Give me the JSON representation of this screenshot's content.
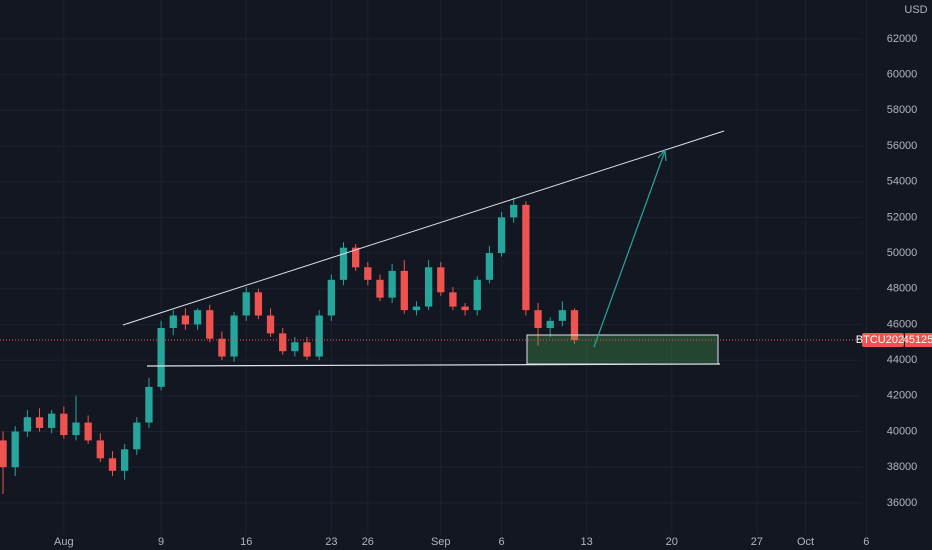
{
  "chart_data": {
    "type": "candlestick",
    "symbol": "BTCU2021",
    "currency": "USD",
    "last_price": 45125,
    "up_color": "#26a69a",
    "down_color": "#ef5350",
    "grid": true,
    "xlim": [
      -4.25,
      72.4
    ],
    "ylim": [
      34200,
      64180
    ],
    "xticks": [
      {
        "value": 1,
        "label": "Aug"
      },
      9,
      16,
      23,
      26,
      {
        "value": 32,
        "label": "Sep"
      },
      {
        "value": 37,
        "label": "6"
      },
      {
        "value": 44,
        "label": "13"
      },
      {
        "value": 51,
        "label": "20"
      },
      {
        "value": 58,
        "label": "27"
      },
      {
        "value": 62,
        "label": "Oct"
      },
      {
        "value": 67,
        "label": "6"
      }
    ],
    "yticks": [
      36000,
      38000,
      40000,
      42000,
      44000,
      46000,
      48000,
      50000,
      52000,
      54000,
      56000,
      58000,
      60000,
      62000
    ],
    "x": [
      -4,
      -3,
      -2,
      -1,
      0,
      1,
      2,
      3,
      4,
      5,
      6,
      7,
      8,
      9,
      10,
      11,
      12,
      13,
      14,
      15,
      16,
      17,
      18,
      19,
      20,
      21,
      22,
      23,
      24,
      25,
      26,
      27,
      28,
      29,
      30,
      31,
      32,
      33,
      34,
      35,
      36,
      37,
      38,
      39,
      40,
      41,
      42,
      43
    ],
    "open": [
      39500,
      38000,
      40000,
      40800,
      40200,
      41000,
      39800,
      40500,
      39500,
      38500,
      37800,
      39000,
      40500,
      42500,
      45800,
      46500,
      46000,
      46800,
      45200,
      44200,
      46500,
      47800,
      46500,
      45500,
      44500,
      45000,
      44200,
      46500,
      48500,
      50300,
      49200,
      48500,
      47500,
      49000,
      46800,
      47000,
      49200,
      47800,
      47000,
      46800,
      48500,
      50000,
      52000,
      52700,
      46800,
      45800,
      46200,
      46800
    ],
    "high": [
      40000,
      40300,
      41200,
      41300,
      41200,
      41400,
      42000,
      40900,
      39900,
      38900,
      39300,
      40800,
      43000,
      46200,
      46800,
      46900,
      46900,
      47100,
      45600,
      46700,
      48100,
      48000,
      46900,
      45800,
      45300,
      45300,
      46800,
      48800,
      50600,
      50500,
      49500,
      48800,
      49400,
      49600,
      47300,
      49600,
      49500,
      48100,
      47200,
      48700,
      50400,
      52300,
      53100,
      52900,
      47200,
      46400,
      47300,
      46900
    ],
    "low": [
      36500,
      37500,
      39700,
      40000,
      39900,
      39600,
      39500,
      39300,
      38300,
      37500,
      37300,
      38700,
      40200,
      42300,
      45400,
      45700,
      45700,
      45000,
      44000,
      43900,
      46200,
      46300,
      45300,
      44300,
      44200,
      44000,
      44000,
      46200,
      48200,
      49000,
      48200,
      47300,
      47200,
      46600,
      46500,
      46800,
      47600,
      46800,
      46500,
      46500,
      48300,
      49800,
      51700,
      46500,
      44800,
      45300,
      45900,
      44900
    ],
    "close": [
      38000,
      40000,
      40800,
      40200,
      41000,
      39800,
      40500,
      39500,
      38500,
      37800,
      39000,
      40500,
      42500,
      45800,
      46500,
      46000,
      46800,
      45200,
      44200,
      46500,
      47800,
      46500,
      45500,
      44500,
      45000,
      44200,
      46500,
      48500,
      50300,
      49200,
      48500,
      47500,
      49000,
      46800,
      47000,
      49200,
      47800,
      47000,
      46800,
      48500,
      50000,
      52000,
      52700,
      46800,
      45800,
      46200,
      46800,
      45125
    ]
  }
}
